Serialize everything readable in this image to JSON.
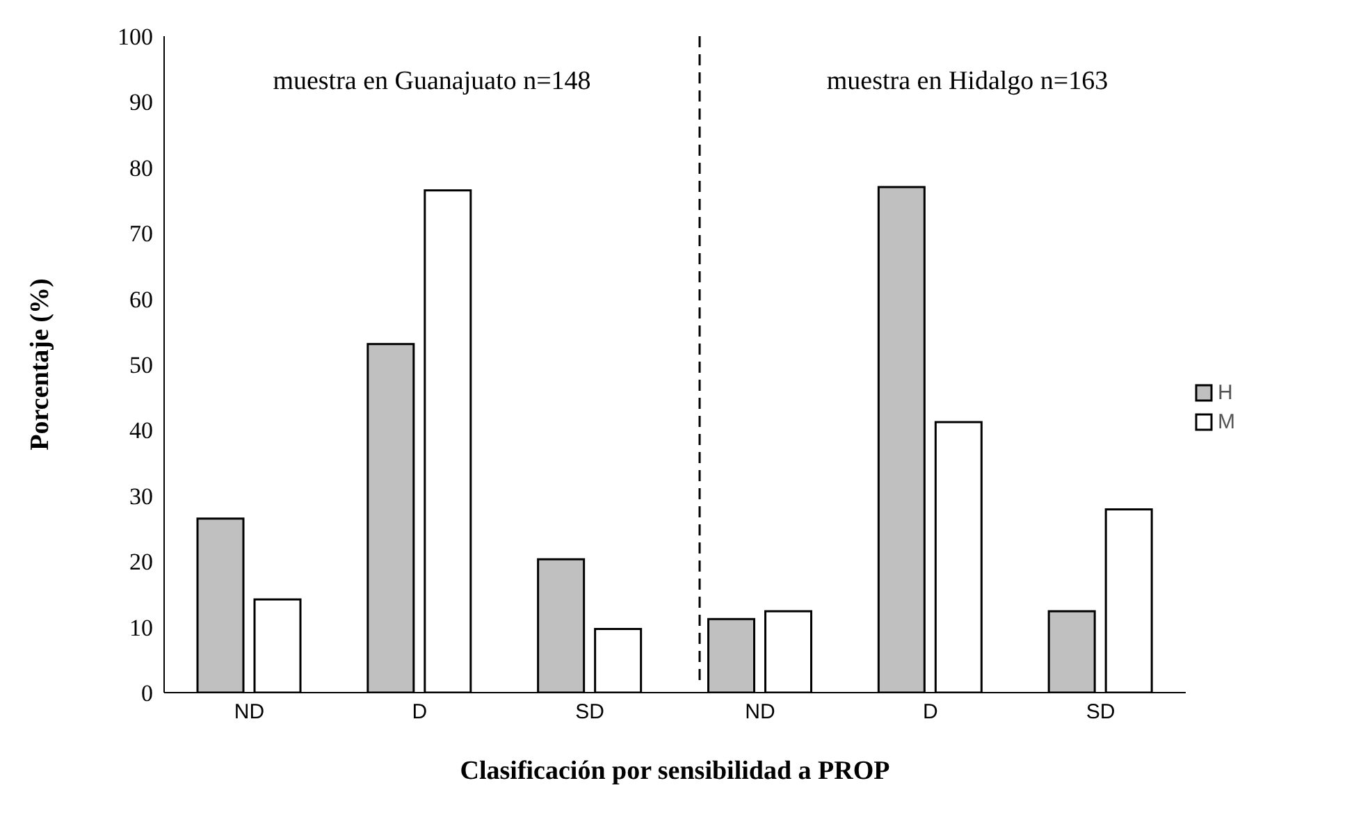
{
  "chart_data": {
    "type": "bar",
    "xlabel": "Clasificación por sensibilidad a PROP",
    "ylabel": "Porcentaje  (%)",
    "categories": [
      "ND",
      "D",
      "SD",
      "ND",
      "D",
      "SD"
    ],
    "series": [
      {
        "name": "H",
        "color": "#c0c0c0",
        "values": [
          26.5,
          53.1,
          20.3,
          11.2,
          77.0,
          12.4
        ]
      },
      {
        "name": "M",
        "color": "#ffffff",
        "values": [
          14.2,
          76.5,
          9.7,
          12.4,
          41.2,
          27.9
        ]
      }
    ],
    "ylim": [
      0,
      100
    ],
    "yticks": [
      0,
      10,
      20,
      30,
      40,
      50,
      60,
      70,
      80,
      90,
      100
    ],
    "grid": false,
    "legend": "right",
    "annotations": [
      "muestra en Guanajuato n=148",
      "muestra en Hidalgo n=163"
    ]
  }
}
